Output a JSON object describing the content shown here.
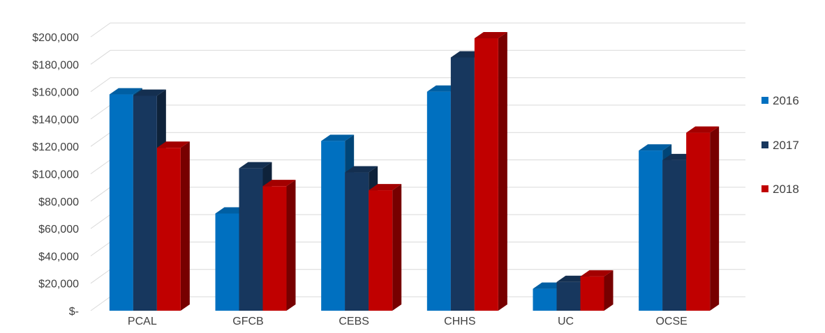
{
  "chart_data": {
    "type": "bar",
    "style": "3d-clustered-column",
    "title": "",
    "xlabel": "",
    "ylabel": "",
    "categories": [
      "PCAL",
      "GFCB",
      "CEBS",
      "CHHS",
      "UC",
      "OCSE"
    ],
    "series": [
      {
        "name": "2016",
        "color": "#0070C0",
        "values": [
          158000,
          71000,
          124000,
          160000,
          16000,
          117000
        ]
      },
      {
        "name": "2017",
        "color": "#17375E",
        "values": [
          157000,
          104000,
          101000,
          185000,
          21000,
          110000
        ]
      },
      {
        "name": "2018",
        "color": "#C00000",
        "values": [
          119000,
          91000,
          88000,
          199000,
          25000,
          130000
        ]
      }
    ],
    "ylim": [
      0,
      200000
    ],
    "ytick_step": 20000,
    "ytick_labels": [
      "$-",
      "$20,000",
      "$40,000",
      "$60,000",
      "$80,000",
      "$100,000",
      "$120,000",
      "$140,000",
      "$160,000",
      "$180,000",
      "$200,000"
    ],
    "grid": true,
    "legend_position": "right"
  }
}
